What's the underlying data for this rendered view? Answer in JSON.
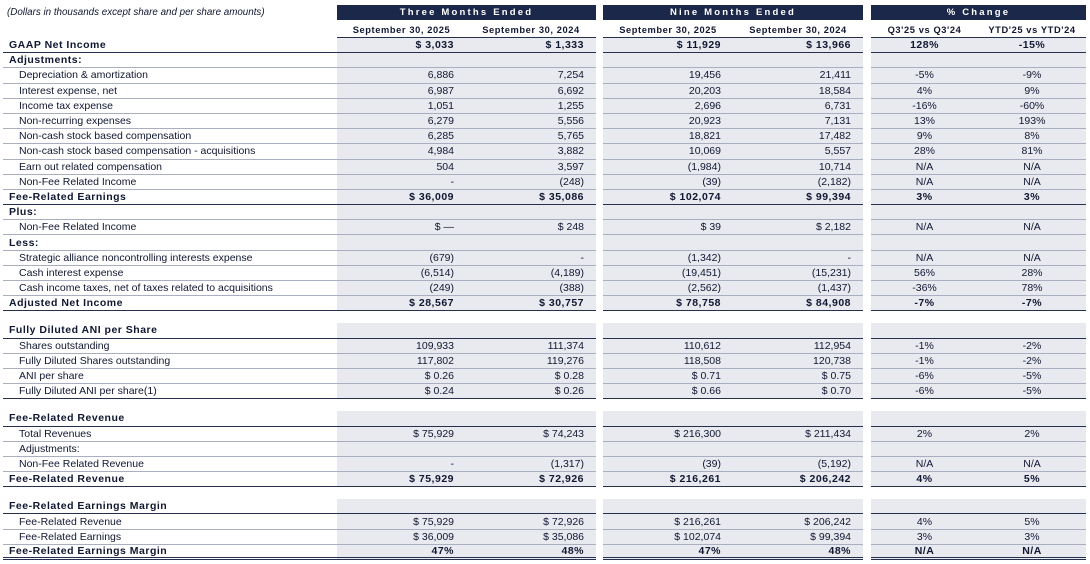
{
  "note": "(Dollars in thousands except share and per share amounts)",
  "colors": {
    "header_bg": "#1c2849",
    "cell_bg": "#e9e9f0"
  },
  "col_groups": [
    {
      "label": "Three Months Ended"
    },
    {
      "label": "Nine Months Ended"
    },
    {
      "label": "% Change"
    }
  ],
  "columns": [
    "September 30, 2025",
    "September 30, 2024",
    "September 30, 2025",
    "September 30, 2024",
    "Q3'25 vs Q3'24",
    "YTD'25 vs YTD'24"
  ],
  "rows": [
    {
      "type": "total",
      "indent": 0,
      "label": "GAAP Net Income",
      "values": [
        "$ 3,033",
        "$ 1,333",
        "$ 11,929",
        "$ 13,966",
        "128%",
        "-15%"
      ]
    },
    {
      "type": "label",
      "indent": 0,
      "label": "Adjustments:",
      "values": [
        "",
        "",
        "",
        "",
        "",
        ""
      ]
    },
    {
      "type": "item",
      "indent": 1,
      "label": "Depreciation & amortization",
      "values": [
        "6,886",
        "7,254",
        "19,456",
        "21,411",
        "-5%",
        "-9%"
      ]
    },
    {
      "type": "item",
      "indent": 1,
      "label": "Interest expense, net",
      "values": [
        "6,987",
        "6,692",
        "20,203",
        "18,584",
        "4%",
        "9%"
      ]
    },
    {
      "type": "item",
      "indent": 1,
      "label": "Income tax expense",
      "values": [
        "1,051",
        "1,255",
        "2,696",
        "6,731",
        "-16%",
        "-60%"
      ]
    },
    {
      "type": "item",
      "indent": 1,
      "label": "Non-recurring expenses",
      "values": [
        "6,279",
        "5,556",
        "20,923",
        "7,131",
        "13%",
        "193%"
      ]
    },
    {
      "type": "item",
      "indent": 1,
      "label": "Non-cash stock based compensation",
      "values": [
        "6,285",
        "5,765",
        "18,821",
        "17,482",
        "9%",
        "8%"
      ]
    },
    {
      "type": "item",
      "indent": 1,
      "label": "Non-cash stock based compensation - acquisitions",
      "values": [
        "4,984",
        "3,882",
        "10,069",
        "5,557",
        "28%",
        "81%"
      ]
    },
    {
      "type": "item",
      "indent": 1,
      "label": "Earn out related compensation",
      "values": [
        "504",
        "3,597",
        "(1,984)",
        "10,714",
        "N/A",
        "N/A"
      ]
    },
    {
      "type": "item",
      "indent": 1,
      "label": "Non-Fee Related Income",
      "values": [
        "-",
        "(248)",
        "(39)",
        "(2,182)",
        "N/A",
        "N/A"
      ]
    },
    {
      "type": "total",
      "indent": 0,
      "label": "Fee-Related Earnings",
      "values": [
        "$ 36,009",
        "$ 35,086",
        "$ 102,074",
        "$ 99,394",
        "3%",
        "3%"
      ]
    },
    {
      "type": "label",
      "indent": 0,
      "label": "Plus:",
      "values": [
        "",
        "",
        "",
        "",
        "",
        ""
      ]
    },
    {
      "type": "item",
      "indent": 1,
      "label": "Non-Fee Related Income",
      "values": [
        "$ —",
        "$ 248",
        "$ 39",
        "$ 2,182",
        "N/A",
        "N/A"
      ]
    },
    {
      "type": "label",
      "indent": 0,
      "label": "Less:",
      "values": [
        "",
        "",
        "",
        "",
        "",
        ""
      ]
    },
    {
      "type": "item",
      "indent": 1,
      "label": "Strategic alliance noncontrolling interests expense",
      "values": [
        "(679)",
        "-",
        "(1,342)",
        "-",
        "N/A",
        "N/A"
      ]
    },
    {
      "type": "item",
      "indent": 1,
      "label": "Cash interest expense",
      "values": [
        "(6,514)",
        "(4,189)",
        "(19,451)",
        "(15,231)",
        "56%",
        "28%"
      ]
    },
    {
      "type": "item",
      "indent": 1,
      "label": "Cash income taxes, net of taxes related to acquisitions",
      "values": [
        "(249)",
        "(388)",
        "(2,562)",
        "(1,437)",
        "-36%",
        "78%"
      ]
    },
    {
      "type": "total",
      "indent": 0,
      "label": "Adjusted Net Income",
      "values": [
        "$ 28,567",
        "$ 30,757",
        "$ 78,758",
        "$ 84,908",
        "-7%",
        "-7%"
      ]
    },
    {
      "type": "spacer"
    },
    {
      "type": "section",
      "indent": 0,
      "label": "Fully Diluted ANI per Share",
      "values": [
        "",
        "",
        "",
        "",
        "",
        ""
      ]
    },
    {
      "type": "item",
      "indent": 1,
      "label": "Shares outstanding",
      "values": [
        "109,933",
        "111,374",
        "110,612",
        "112,954",
        "-1%",
        "-2%"
      ]
    },
    {
      "type": "item",
      "indent": 1,
      "label": "Fully Diluted Shares outstanding",
      "values": [
        "117,802",
        "119,276",
        "118,508",
        "120,738",
        "-1%",
        "-2%"
      ]
    },
    {
      "type": "item",
      "indent": 1,
      "label": "ANI per share",
      "values": [
        "$ 0.26",
        "$ 0.28",
        "$ 0.71",
        "$ 0.75",
        "-6%",
        "-5%"
      ]
    },
    {
      "type": "item-end",
      "indent": 1,
      "label": "Fully Diluted ANI per share(1)",
      "values": [
        "$ 0.24",
        "$ 0.26",
        "$ 0.66",
        "$ 0.70",
        "-6%",
        "-5%"
      ]
    },
    {
      "type": "spacer"
    },
    {
      "type": "section",
      "indent": 0,
      "label": "Fee-Related Revenue",
      "values": [
        "",
        "",
        "",
        "",
        "",
        ""
      ]
    },
    {
      "type": "item",
      "indent": 1,
      "label": "Total Revenues",
      "values": [
        "$ 75,929",
        "$ 74,243",
        "$ 216,300",
        "$ 211,434",
        "2%",
        "2%"
      ]
    },
    {
      "type": "item",
      "indent": 1,
      "label": "Adjustments:",
      "values": [
        "",
        "",
        "",
        "",
        "",
        ""
      ]
    },
    {
      "type": "item",
      "indent": 1,
      "label": "Non-Fee Related Revenue",
      "values": [
        "-",
        "(1,317)",
        "(39)",
        "(5,192)",
        "N/A",
        "N/A"
      ]
    },
    {
      "type": "total",
      "indent": 0,
      "label": "Fee-Related Revenue",
      "values": [
        "$ 75,929",
        "$ 72,926",
        "$ 216,261",
        "$ 206,242",
        "4%",
        "5%"
      ]
    },
    {
      "type": "spacer"
    },
    {
      "type": "section",
      "indent": 0,
      "label": "Fee-Related Earnings Margin",
      "values": [
        "",
        "",
        "",
        "",
        "",
        ""
      ]
    },
    {
      "type": "item",
      "indent": 1,
      "label": "Fee-Related Revenue",
      "values": [
        "$ 75,929",
        "$ 72,926",
        "$ 216,261",
        "$ 206,242",
        "4%",
        "5%"
      ]
    },
    {
      "type": "item",
      "indent": 1,
      "label": "Fee-Related Earnings",
      "values": [
        "$ 36,009",
        "$ 35,086",
        "$ 102,074",
        "$ 99,394",
        "3%",
        "3%"
      ]
    },
    {
      "type": "grand",
      "indent": 0,
      "label": "Fee-Related Earnings Margin",
      "values": [
        "47%",
        "48%",
        "47%",
        "48%",
        "N/A",
        "N/A"
      ]
    }
  ]
}
